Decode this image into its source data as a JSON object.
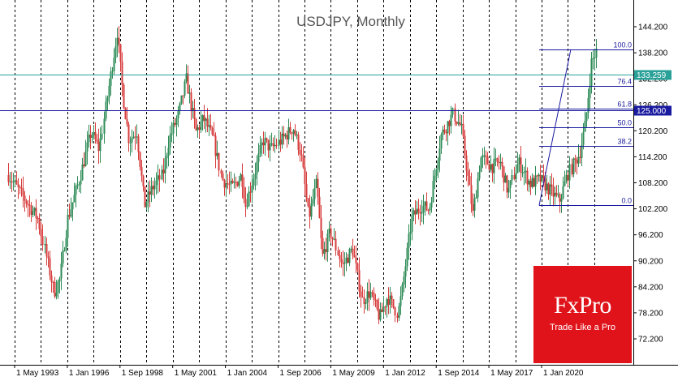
{
  "chart_data": {
    "type": "candlestick",
    "title": "USDJPY, Monthly",
    "x_tick_labels": [
      "1 May 1993",
      "1 Jan 1996",
      "1 Sep 1998",
      "1 May 2001",
      "1 Jan 2004",
      "1 Sep 2006",
      "1 May 2009",
      "1 Jan 2012",
      "1 Sep 2014",
      "1 May 2017",
      "1 Jan 2020"
    ],
    "y_tick_labels": [
      "144.200",
      "138.200",
      "132.200",
      "126.200",
      "120.200",
      "114.200",
      "108.200",
      "102.200",
      "96.200",
      "90.200",
      "84.200",
      "78.200",
      "72.200"
    ],
    "y_ticks": [
      144.2,
      138.2,
      132.2,
      126.2,
      120.2,
      114.2,
      108.2,
      102.2,
      96.2,
      90.2,
      84.2,
      78.2,
      72.2
    ],
    "ylim": [
      69.2,
      147.2
    ],
    "price_lines": [
      {
        "label": "133.259",
        "value": 133.259,
        "color": "#2aa198"
      },
      {
        "label": "125.000",
        "value": 125.0,
        "color": "#1a1aa0"
      }
    ],
    "fibonacci": {
      "low": 103.0,
      "high": 139.0,
      "levels": [
        {
          "label": "100.0",
          "ratio": 1.0
        },
        {
          "label": "76.4",
          "ratio": 0.764
        },
        {
          "label": "61.8",
          "ratio": 0.618
        },
        {
          "label": "50.0",
          "ratio": 0.5
        },
        {
          "label": "38.2",
          "ratio": 0.382
        },
        {
          "label": "0.0",
          "ratio": 0.0
        }
      ]
    },
    "series_anchors": [
      [
        1993.0,
        110.0
      ],
      [
        1993.6,
        106.0
      ],
      [
        1994.5,
        100.0
      ],
      [
        1995.3,
        83.0
      ],
      [
        1995.6,
        86.0
      ],
      [
        1996.0,
        100.0
      ],
      [
        1996.6,
        109.0
      ],
      [
        1997.2,
        120.0
      ],
      [
        1997.6,
        116.0
      ],
      [
        1998.0,
        128.0
      ],
      [
        1998.5,
        143.0
      ],
      [
        1998.8,
        128.0
      ],
      [
        1999.1,
        118.0
      ],
      [
        1999.5,
        120.0
      ],
      [
        1999.9,
        103.0
      ],
      [
        2000.3,
        107.0
      ],
      [
        2000.8,
        110.0
      ],
      [
        2001.1,
        118.0
      ],
      [
        2001.6,
        124.0
      ],
      [
        2002.0,
        132.0
      ],
      [
        2002.5,
        120.0
      ],
      [
        2002.9,
        123.0
      ],
      [
        2003.4,
        118.0
      ],
      [
        2003.8,
        109.0
      ],
      [
        2004.3,
        107.0
      ],
      [
        2004.8,
        110.0
      ],
      [
        2005.0,
        103.0
      ],
      [
        2005.5,
        111.0
      ],
      [
        2005.9,
        118.0
      ],
      [
        2006.3,
        116.0
      ],
      [
        2006.8,
        118.0
      ],
      [
        2007.4,
        121.0
      ],
      [
        2007.8,
        115.0
      ],
      [
        2008.2,
        100.0
      ],
      [
        2008.6,
        108.0
      ],
      [
        2008.9,
        91.0
      ],
      [
        2009.3,
        97.0
      ],
      [
        2009.9,
        89.0
      ],
      [
        2010.4,
        93.0
      ],
      [
        2010.9,
        81.0
      ],
      [
        2011.3,
        83.0
      ],
      [
        2011.8,
        77.0
      ],
      [
        2012.2,
        82.0
      ],
      [
        2012.7,
        78.0
      ],
      [
        2012.9,
        83.0
      ],
      [
        2013.4,
        100.0
      ],
      [
        2013.9,
        103.0
      ],
      [
        2014.3,
        102.0
      ],
      [
        2014.9,
        119.0
      ],
      [
        2015.5,
        124.0
      ],
      [
        2015.9,
        121.0
      ],
      [
        2016.5,
        101.0
      ],
      [
        2016.9,
        114.0
      ],
      [
        2017.5,
        112.0
      ],
      [
        2017.9,
        113.0
      ],
      [
        2018.3,
        106.0
      ],
      [
        2018.8,
        113.0
      ],
      [
        2019.4,
        108.0
      ],
      [
        2019.9,
        109.0
      ],
      [
        2020.3,
        107.0
      ],
      [
        2020.9,
        104.0
      ],
      [
        2021.3,
        110.0
      ],
      [
        2021.9,
        115.0
      ],
      [
        2022.2,
        122.0
      ],
      [
        2022.5,
        136.0
      ],
      [
        2022.8,
        139.0
      ]
    ]
  },
  "branding": {
    "logo": "FxPro",
    "tagline": "Trade Like a Pro"
  }
}
